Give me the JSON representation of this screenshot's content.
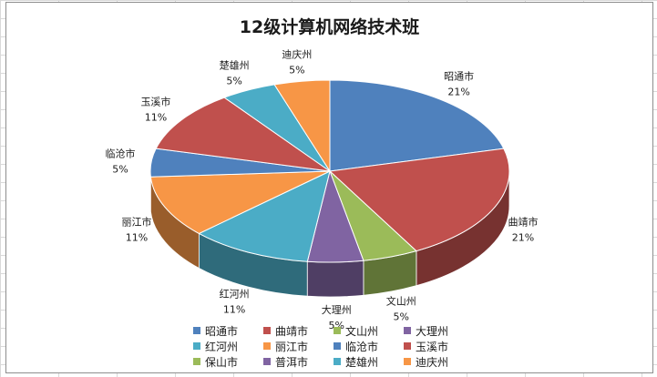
{
  "chart_data": {
    "type": "pie",
    "title": "12级计算机网络技术班",
    "categories": [
      "昭通市",
      "曲靖市",
      "文山州",
      "大理州",
      "红河州",
      "丽江市",
      "临沧市",
      "玉溪市",
      "保山市",
      "普洱市",
      "楚雄州",
      "迪庆州"
    ],
    "values": [
      21,
      21,
      5,
      5,
      11,
      11,
      5,
      11,
      0,
      0,
      5,
      5
    ],
    "data_labels": [
      "21%",
      "21%",
      "5%",
      "5%",
      "11%",
      "11%",
      "5%",
      "11%",
      "",
      "",
      "5%",
      "5%"
    ],
    "colors": [
      "#4f81bd",
      "#c0504d",
      "#9bbb59",
      "#8064a2",
      "#4bacc6",
      "#f79646",
      "#4f81bd",
      "#c0504d",
      "#9bbb59",
      "#8064a2",
      "#4bacc6",
      "#f79646"
    ],
    "legend": "bottom",
    "three_d": true
  }
}
